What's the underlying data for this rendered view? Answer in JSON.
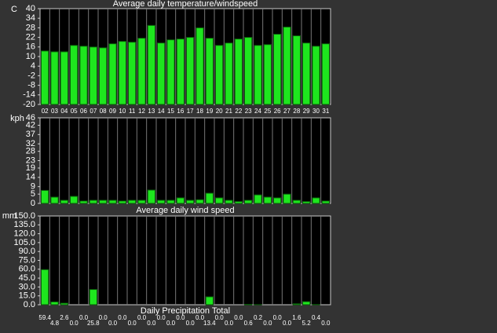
{
  "chart_data": [
    {
      "type": "bar",
      "title": "Average daily temperature/windspeed",
      "y_label": "C",
      "color": "#1ee61e",
      "categories": [
        "02",
        "03",
        "04",
        "05",
        "06",
        "07",
        "08",
        "09",
        "10",
        "11",
        "12",
        "13",
        "14",
        "15",
        "16",
        "17",
        "18",
        "19",
        "20",
        "21",
        "22",
        "23",
        "24",
        "25",
        "26",
        "27",
        "28",
        "29",
        "30",
        "31"
      ],
      "values": [
        13.5,
        13,
        13,
        17,
        16.5,
        16,
        15.5,
        18,
        19.5,
        19,
        21.5,
        29.5,
        18.5,
        20.5,
        21,
        22,
        28,
        21.5,
        17,
        18.5,
        21,
        22,
        17,
        17.5,
        24,
        28.5,
        23,
        18.5,
        16.5,
        18
      ],
      "ylim": [
        -20,
        40
      ],
      "yticks": [
        40,
        34,
        28,
        22,
        16,
        10,
        4,
        -2,
        -8,
        -14,
        -20
      ]
    },
    {
      "type": "bar",
      "title": "Average daily wind speed",
      "y_label": "kph",
      "color": "#1ee61e",
      "values": [
        7,
        3.4,
        1.7,
        3.8,
        1.3,
        1.7,
        1.7,
        1.7,
        1.3,
        1.7,
        1.7,
        7.2,
        1.7,
        1.7,
        3,
        1.7,
        2,
        5.5,
        3,
        1.7,
        1,
        1.7,
        4.6,
        3.4,
        3,
        5,
        1.7,
        1,
        3,
        1.3
      ],
      "ylim": [
        0,
        46
      ],
      "yticks": [
        46,
        42,
        37,
        32,
        28,
        23,
        19,
        14,
        9,
        5,
        0
      ]
    },
    {
      "type": "bar",
      "title": "Daily Precipitation Total",
      "y_label": "mm",
      "color": "#1ee61e",
      "values": [
        59.4,
        4.8,
        2.6,
        0,
        0,
        25.8,
        0,
        0,
        0,
        0,
        0,
        0,
        0,
        0,
        0,
        0,
        0,
        13.4,
        0,
        0,
        0,
        0.6,
        0.2,
        0,
        0,
        0,
        1.6,
        5.2,
        0.4,
        0
      ],
      "value_labels": [
        "59.4",
        "4.8",
        "2.6",
        "0.0",
        "0.0",
        "25.8",
        "0.0",
        "0.0",
        "0.0",
        "0.0",
        "0.0",
        "0.0",
        "0.0",
        "0.0",
        "0.0",
        "0.0",
        "0.0",
        "13.4",
        "0.0",
        "0.0",
        "0.0",
        "0.6",
        "0.2",
        "0.0",
        "0.0",
        "0.0",
        "1.6",
        "5.2",
        "0.4",
        "0.0"
      ],
      "ylim": [
        0,
        150
      ],
      "yticks": [
        {
          "value": 150,
          "label": "150.0"
        },
        {
          "value": 135,
          "label": "135.0"
        },
        {
          "value": 120,
          "label": "120.0"
        },
        {
          "value": 105,
          "label": "105.0"
        },
        {
          "value": 90,
          "label": "90.0"
        },
        {
          "value": 75,
          "label": "75.0"
        },
        {
          "value": 60,
          "label": "60.0"
        },
        {
          "value": 45,
          "label": "45.0"
        },
        {
          "value": 30,
          "label": "30.0"
        },
        {
          "value": 15,
          "label": "15.0"
        },
        {
          "value": 0,
          "label": "0.0"
        }
      ]
    }
  ]
}
